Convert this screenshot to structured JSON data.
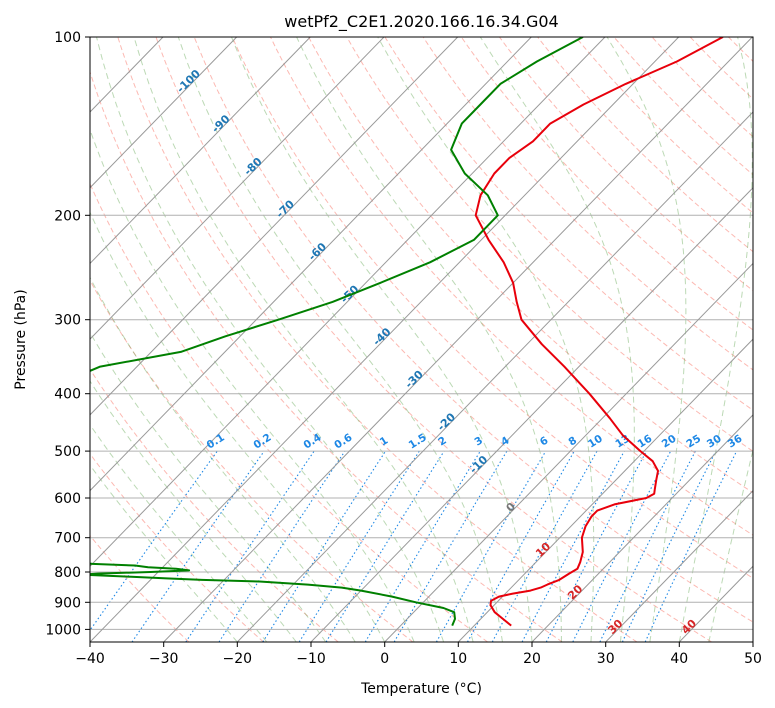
{
  "chart_data": {
    "type": "line",
    "title": "wetPf2_C2E1.2020.166.16.34.G04",
    "xlabel": "Temperature (°C)",
    "ylabel": "Pressure (hPa)",
    "xlim": [
      -40,
      50
    ],
    "ylim": [
      1050,
      100
    ],
    "y_scale": "log",
    "grid": true,
    "x_ticks": [
      -40,
      -30,
      -20,
      -10,
      0,
      10,
      20,
      30,
      40,
      50
    ],
    "y_ticks": [
      100,
      200,
      300,
      400,
      500,
      600,
      700,
      800,
      900,
      1000
    ],
    "colors": {
      "temperature": "#e8000b",
      "dewpoint": "#008000",
      "isotherm": "#999999",
      "dry_adiabat": "#fa8072",
      "moist_adiabat": "#6aaa5a",
      "mixing_ratio": "#1e88e5"
    },
    "isotherm_labels": [
      "-100",
      "-90",
      "-80",
      "-70",
      "-60",
      "-50",
      "-40",
      "-30",
      "-20",
      "-10",
      "0",
      "10",
      "20",
      "30",
      "40"
    ],
    "mixing_ratio_labels": [
      "0.1",
      "0.2",
      "0.4",
      "0.6",
      "1",
      "1.5",
      "2",
      "3",
      "4",
      "6",
      "8",
      "10",
      "13",
      "16",
      "20",
      "25",
      "30",
      "36"
    ],
    "series": [
      {
        "key": "temperature",
        "p": [
          985,
          960,
          935,
          910,
          895,
          880,
          870,
          860,
          850,
          840,
          825,
          805,
          790,
          770,
          740,
          700,
          670,
          645,
          630,
          615,
          600,
          590,
          580,
          560,
          540,
          520,
          500,
          470,
          440,
          400,
          360,
          330,
          300,
          280,
          260,
          240,
          220,
          200,
          185,
          170,
          160,
          150,
          140,
          130,
          120,
          110,
          100
        ],
        "t": [
          15,
          13,
          11,
          9.5,
          9,
          9.5,
          11,
          13,
          14,
          14.5,
          15.5,
          16,
          16.5,
          16,
          15,
          13,
          12,
          11.5,
          11.5,
          13,
          16.5,
          17,
          16.5,
          15.5,
          14.5,
          12.5,
          9.5,
          5,
          1,
          -5,
          -12,
          -18,
          -24,
          -27,
          -30,
          -34,
          -39,
          -44,
          -46,
          -47,
          -47,
          -46,
          -46,
          -44,
          -41,
          -37,
          -34
        ]
      },
      {
        "key": "dewpoint",
        "p": [
          985,
          960,
          935,
          920,
          900,
          880,
          860,
          850,
          840,
          830,
          825,
          820,
          815,
          812,
          810,
          808,
          805,
          800,
          795,
          790,
          785,
          780,
          775,
          770,
          750,
          730,
          710,
          690,
          670,
          650,
          640,
          630,
          620,
          615,
          610,
          600,
          590,
          570,
          550,
          530,
          510,
          500,
          490,
          480,
          470,
          450,
          440,
          430,
          420,
          410,
          405,
          400,
          390,
          375,
          360,
          340,
          320,
          300,
          280,
          260,
          240,
          220,
          200,
          185,
          170,
          155,
          140,
          130,
          120,
          110,
          100
        ],
        "td": [
          7,
          6.5,
          5.5,
          3.5,
          -1,
          -5,
          -10,
          -13,
          -18,
          -25,
          -33,
          -38,
          -43,
          -46,
          -48,
          -50,
          -48,
          -41,
          -36,
          -38,
          -42,
          -44,
          -50,
          -52,
          -54,
          -60,
          -67,
          -65,
          -62,
          -65,
          -70,
          -80,
          -95,
          -110,
          -125,
          -135,
          -150,
          -165,
          -140,
          -118,
          -99,
          -87,
          -82,
          -79,
          -78,
          -77,
          -76,
          -76,
          -75,
          -75,
          -76,
          -77,
          -78,
          -77,
          -75,
          -66,
          -62,
          -57,
          -52,
          -48,
          -44,
          -41,
          -41,
          -45,
          -51,
          -56,
          -58,
          -58,
          -58,
          -56,
          -53
        ]
      }
    ]
  }
}
